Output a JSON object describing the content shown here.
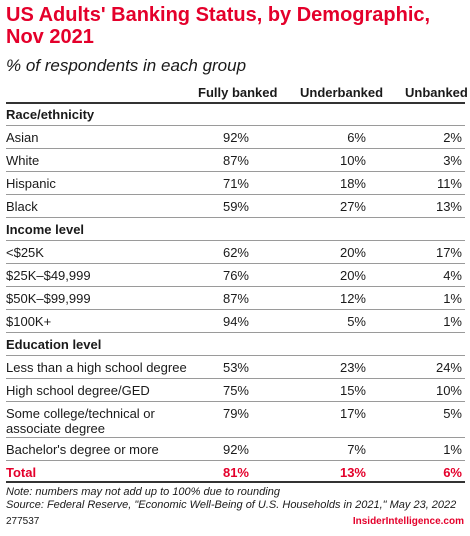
{
  "chart_data": {
    "type": "table",
    "title": "US Adults' Banking Status, by Demographic, Nov 2021",
    "subtitle": "% of respondents in each group",
    "columns": [
      "Fully banked",
      "Underbanked",
      "Unbanked"
    ],
    "groups": [
      {
        "name": "Race/ethnicity",
        "rows": [
          {
            "label": "Asian",
            "values": [
              "92%",
              "6%",
              "2%"
            ]
          },
          {
            "label": "White",
            "values": [
              "87%",
              "10%",
              "3%"
            ]
          },
          {
            "label": "Hispanic",
            "values": [
              "71%",
              "18%",
              "11%"
            ]
          },
          {
            "label": "Black",
            "values": [
              "59%",
              "27%",
              "13%"
            ]
          }
        ]
      },
      {
        "name": "Income level",
        "rows": [
          {
            "label": "<$25K",
            "values": [
              "62%",
              "20%",
              "17%"
            ]
          },
          {
            "label": "$25K–$49,999",
            "values": [
              "76%",
              "20%",
              "4%"
            ]
          },
          {
            "label": "$50K–$99,999",
            "values": [
              "87%",
              "12%",
              "1%"
            ]
          },
          {
            "label": "$100K+",
            "values": [
              "94%",
              "5%",
              "1%"
            ]
          }
        ]
      },
      {
        "name": "Education level",
        "rows": [
          {
            "label": "Less than a high school degree",
            "values": [
              "53%",
              "23%",
              "24%"
            ]
          },
          {
            "label": "High school degree/GED",
            "values": [
              "75%",
              "15%",
              "10%"
            ]
          },
          {
            "label": "Some college/technical or associate degree",
            "values": [
              "79%",
              "17%",
              "5%"
            ]
          },
          {
            "label": "Bachelor's degree or more",
            "values": [
              "92%",
              "7%",
              "1%"
            ]
          }
        ]
      }
    ],
    "total": {
      "label": "Total",
      "values": [
        "81%",
        "13%",
        "6%"
      ]
    }
  },
  "notes": {
    "note": "Note: numbers may not add up to 100% due to rounding",
    "source": "Source: Federal Reserve, \"Economic Well-Being of U.S. Households in 2021,\" May 23, 2022"
  },
  "footer": {
    "chart_id": "277537",
    "brand": "InsiderIntelligence.com"
  },
  "colors": {
    "accent": "#e4002b",
    "text": "#1a1a1a"
  }
}
